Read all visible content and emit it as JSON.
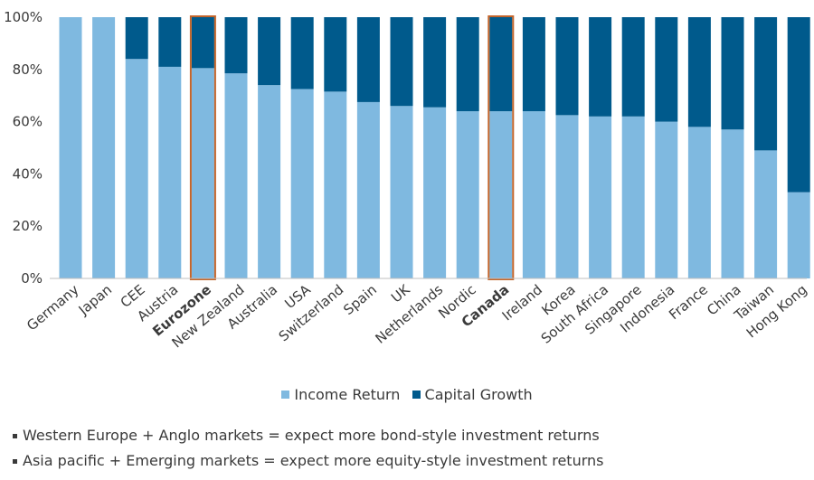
{
  "chart_data": {
    "type": "bar",
    "stacked": true,
    "percent": true,
    "categories": [
      "Germany",
      "Japan",
      "CEE",
      "Austria",
      "Eurozone",
      "New Zealand",
      "Australia",
      "USA",
      "Switzerland",
      "Spain",
      "UK",
      "Netherlands",
      "Nordic",
      "Canada",
      "Ireland",
      "Korea",
      "South Africa",
      "Singapore",
      "Indonesia",
      "France",
      "China",
      "Taiwan",
      "Hong Kong"
    ],
    "highlighted": [
      "Eurozone",
      "Canada"
    ],
    "series": [
      {
        "name": "Income Return",
        "color": "#7fb9e0",
        "values": [
          100,
          100,
          84,
          81,
          80.5,
          78.5,
          74,
          72.5,
          71.5,
          67.5,
          66,
          65.5,
          64,
          64,
          64,
          62.5,
          62,
          62,
          60,
          58,
          57,
          49,
          33
        ]
      },
      {
        "name": "Capital Growth",
        "color": "#005a8c",
        "values": [
          0,
          0,
          16,
          19,
          19.5,
          21.5,
          26,
          27.5,
          28.5,
          32.5,
          34,
          34.5,
          36,
          36,
          36,
          37.5,
          38,
          38,
          40,
          42,
          43,
          51,
          67
        ]
      }
    ],
    "yticks": [
      "0%",
      "20%",
      "40%",
      "60%",
      "80%",
      "100%"
    ],
    "ylim": [
      0,
      100
    ],
    "highlight_color": "#c4652b",
    "legend_position": "bottom-center",
    "notes": [
      "Western Europe + Anglo markets = expect more bond-style investment returns",
      "Asia pacific + Emerging markets = expect more equity-style investment returns"
    ]
  }
}
